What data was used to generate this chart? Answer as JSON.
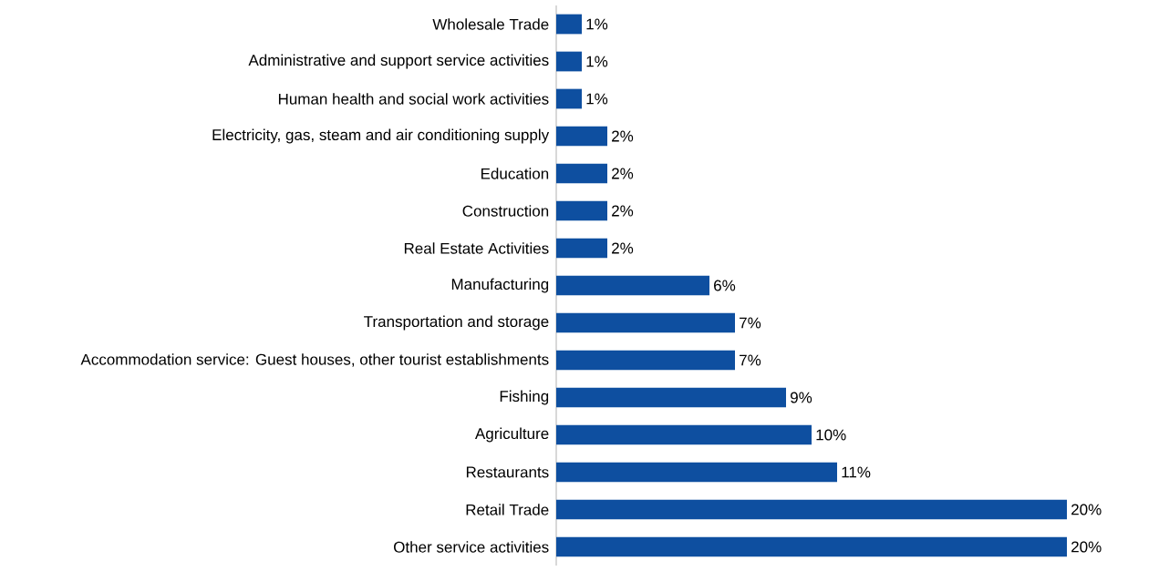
{
  "chart_data": {
    "type": "bar",
    "orientation": "horizontal",
    "color": "#0e4fa0",
    "categories": [
      "Wholesale Trade",
      "Administrative and support service activities",
      "Human health and social work activities",
      "Electricity, gas, steam and air conditioning supply",
      "Education",
      "Construction",
      "Real Estate Activities",
      "Manufacturing",
      "Transportation and storage",
      "Accommodation service: Guest houses, other tourist establishments",
      "Fishing",
      "Agriculture",
      "Restaurants",
      "Retail Trade",
      "Other service activities"
    ],
    "values": [
      1,
      1,
      1,
      2,
      2,
      2,
      2,
      6,
      7,
      7,
      9,
      10,
      11,
      20,
      20
    ],
    "value_labels": [
      "1%",
      "1%",
      "1%",
      "2%",
      "2%",
      "2%",
      "2%",
      "6%",
      "7%",
      "7%",
      "9%",
      "10%",
      "11%",
      "20%",
      "20%"
    ]
  }
}
